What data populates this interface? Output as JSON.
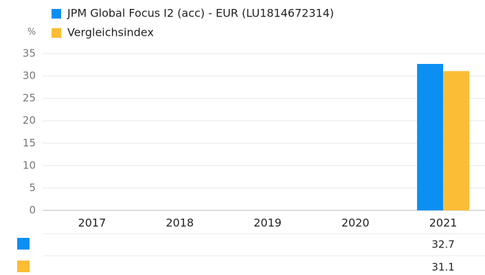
{
  "chart_data": {
    "type": "bar",
    "y_label": "%",
    "categories": [
      "2017",
      "2018",
      "2019",
      "2020",
      "2021"
    ],
    "series": [
      {
        "name": "JPM Global Focus I2 (acc) - EUR (LU1814672314)",
        "color": "#0b8ff2",
        "values": [
          null,
          null,
          null,
          null,
          32.7
        ]
      },
      {
        "name": "Vergleichsindex",
        "color": "#fbbd35",
        "values": [
          null,
          null,
          null,
          null,
          31.1
        ]
      }
    ],
    "ylim": [
      0,
      35
    ],
    "yticks": [
      0,
      5,
      10,
      15,
      20,
      25,
      30,
      35
    ],
    "grid": true,
    "legend": "top"
  }
}
